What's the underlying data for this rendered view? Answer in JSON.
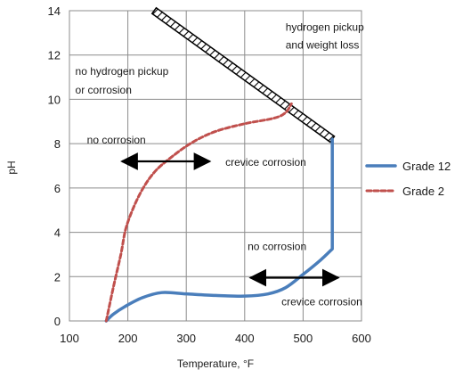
{
  "chart_data": {
    "type": "line",
    "xlabel": "Temperature, °F",
    "ylabel": "pH",
    "xlim": [
      100,
      600
    ],
    "ylim": [
      0,
      14
    ],
    "x_ticks": [
      100,
      200,
      300,
      400,
      500,
      600
    ],
    "y_ticks": [
      0,
      2,
      4,
      6,
      8,
      10,
      12,
      14
    ],
    "grid": "both",
    "legend_position": "right",
    "series": [
      {
        "name": "Grade 12",
        "color": "#4a7ebb",
        "style": "solid",
        "points": [
          [
            163,
            0
          ],
          [
            175,
            0.3
          ],
          [
            195,
            0.65
          ],
          [
            225,
            1.05
          ],
          [
            258,
            1.28
          ],
          [
            300,
            1.22
          ],
          [
            350,
            1.15
          ],
          [
            400,
            1.12
          ],
          [
            440,
            1.22
          ],
          [
            470,
            1.5
          ],
          [
            500,
            2.1
          ],
          [
            530,
            2.75
          ],
          [
            550,
            3.25
          ],
          [
            550,
            8.2
          ]
        ]
      },
      {
        "name": "Grade 2",
        "color": "#c0504d",
        "style": "dashed",
        "points": [
          [
            163,
            0
          ],
          [
            175,
            1.5
          ],
          [
            188,
            3
          ],
          [
            198,
            4.3
          ],
          [
            220,
            5.7
          ],
          [
            245,
            6.7
          ],
          [
            275,
            7.4
          ],
          [
            310,
            8.05
          ],
          [
            350,
            8.55
          ],
          [
            400,
            8.9
          ],
          [
            450,
            9.15
          ],
          [
            470,
            9.4
          ],
          [
            480,
            9.8
          ]
        ]
      }
    ],
    "boundary": {
      "name": "hatched-boundary",
      "points": [
        [
          245,
          14
        ],
        [
          550,
          8.2
        ]
      ]
    },
    "annotations": [
      {
        "text": "hydrogen pickup",
        "x": 470,
        "y": 13.1
      },
      {
        "text": "and weight loss",
        "x": 470,
        "y": 12.3
      },
      {
        "text": "no hydrogen pickup",
        "x": 110,
        "y": 11.1
      },
      {
        "text": "or corrosion",
        "x": 110,
        "y": 10.25
      },
      {
        "text": "no corrosion",
        "x": 130,
        "y": 8.0
      },
      {
        "text": "crevice corrosion",
        "x": 367,
        "y": 7.0
      },
      {
        "text": "no corrosion",
        "x": 405,
        "y": 3.2
      },
      {
        "text": "crevice corrosion",
        "x": 463,
        "y": 0.7
      }
    ],
    "arrows": [
      {
        "from": [
          190,
          7.2
        ],
        "to": [
          340,
          7.2
        ],
        "name": "upper-double-arrow"
      },
      {
        "from": [
          410,
          1.95
        ],
        "to": [
          560,
          1.95
        ],
        "name": "lower-double-arrow"
      }
    ]
  }
}
